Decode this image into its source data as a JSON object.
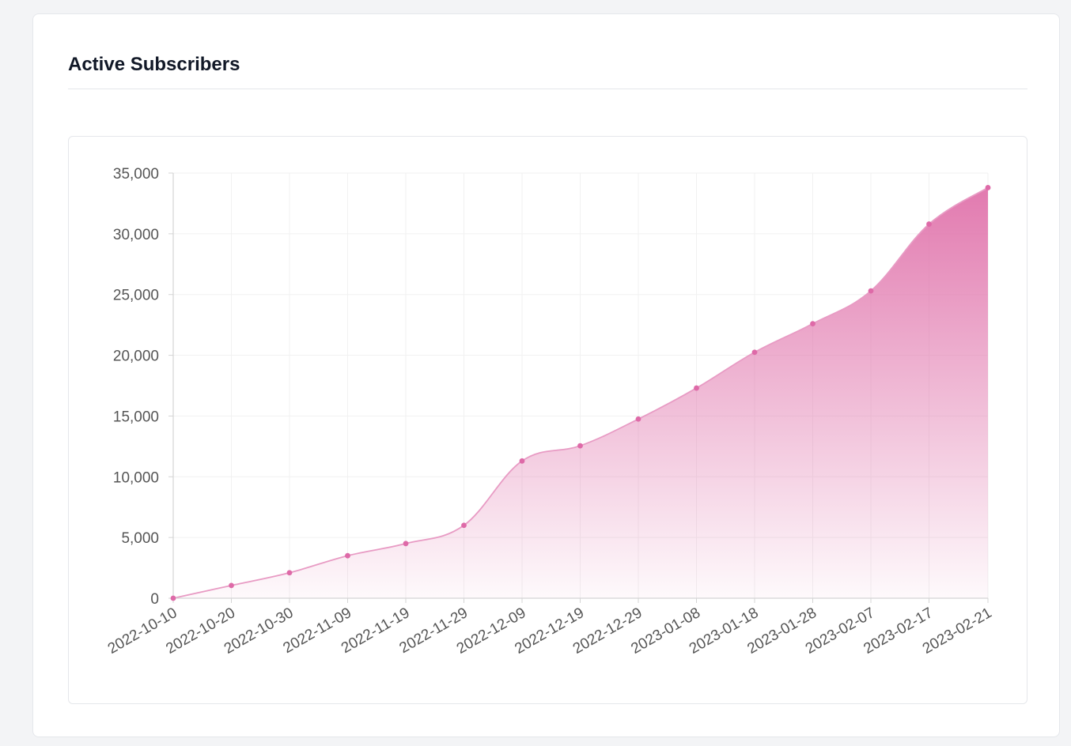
{
  "card": {
    "title": "Active Subscribers"
  },
  "colors": {
    "line": "#e89bc4",
    "point": "#de6aa8",
    "fill_top": "#e073ab",
    "grid": "#f1f1f1",
    "axis": "#d4d4d4"
  },
  "chart_data": {
    "type": "area",
    "title": "Active Subscribers",
    "xlabel": "",
    "ylabel": "",
    "ylim": [
      0,
      35000
    ],
    "yticks": [
      0,
      5000,
      10000,
      15000,
      20000,
      25000,
      30000,
      35000
    ],
    "ytick_labels": [
      "0",
      "5,000",
      "10,000",
      "15,000",
      "20,000",
      "25,000",
      "30,000",
      "35,000"
    ],
    "grid": true,
    "categories": [
      "2022-10-10",
      "2022-10-20",
      "2022-10-30",
      "2022-11-09",
      "2022-11-19",
      "2022-11-29",
      "2022-12-09",
      "2022-12-19",
      "2022-12-29",
      "2023-01-08",
      "2023-01-18",
      "2023-01-28",
      "2023-02-07",
      "2023-02-17",
      "2023-02-21"
    ],
    "series": [
      {
        "name": "Active Subscribers",
        "values": [
          0,
          1050,
          2100,
          3500,
          4500,
          6000,
          11300,
          12550,
          14750,
          17300,
          20250,
          22600,
          25300,
          30800,
          33800
        ]
      }
    ]
  }
}
